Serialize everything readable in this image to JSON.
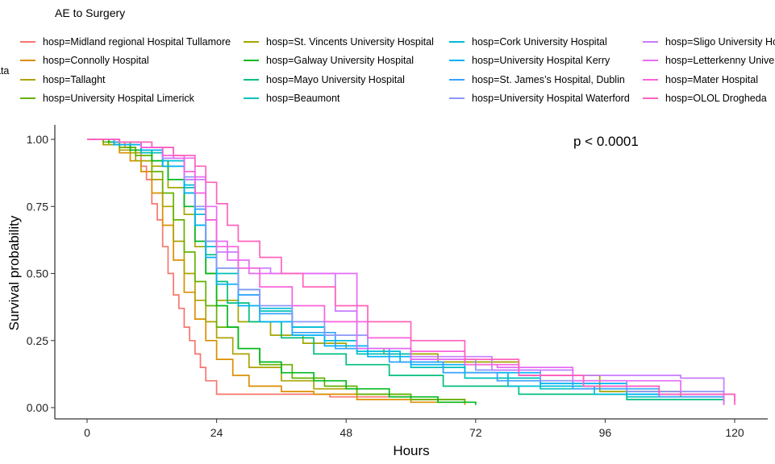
{
  "chart_data": {
    "type": "line",
    "subtype": "kaplan-meier step curves",
    "legend_title": "AE to Surgery",
    "legend_left_fragment": "ata",
    "legend_placement": "top",
    "xlabel": "Hours",
    "ylabel": "Survival probability",
    "xlim": [
      -4,
      126
    ],
    "ylim": [
      -0.05,
      1.05
    ],
    "x_ticks": [
      0,
      24,
      48,
      72,
      96,
      120
    ],
    "x_tick_labels": [
      "0",
      "24",
      "48",
      "72",
      "96",
      "120"
    ],
    "y_ticks": [
      0,
      0.25,
      0.5,
      0.75,
      1.0
    ],
    "y_tick_labels": [
      "0.00",
      "0.25",
      "0.50",
      "0.75",
      "1.00"
    ],
    "grid": false,
    "annotation": "p < 0.0001",
    "series": [
      {
        "name": "hosp=Midland regional Hospital Tullamore",
        "color": "#F8766D",
        "x": [
          0,
          5,
          7,
          9,
          10,
          11,
          12,
          13,
          14,
          15,
          16,
          17,
          18,
          19,
          20,
          21,
          22,
          24,
          30,
          45,
          60
        ],
        "y": [
          1.0,
          0.99,
          0.97,
          0.95,
          0.9,
          0.85,
          0.76,
          0.7,
          0.6,
          0.5,
          0.42,
          0.37,
          0.3,
          0.25,
          0.2,
          0.15,
          0.1,
          0.05,
          0.05,
          0.04,
          0.04
        ]
      },
      {
        "name": "hosp=Connolly Hospital",
        "color": "#DB8E00",
        "x": [
          0,
          3,
          6,
          8,
          10,
          12,
          14,
          16,
          18,
          20,
          22,
          24,
          27,
          30,
          36,
          42,
          50,
          60,
          70
        ],
        "y": [
          1.0,
          0.98,
          0.95,
          0.92,
          0.88,
          0.8,
          0.68,
          0.55,
          0.43,
          0.33,
          0.25,
          0.18,
          0.12,
          0.08,
          0.06,
          0.05,
          0.03,
          0.02,
          0.01
        ]
      },
      {
        "name": "hosp=Tallaght",
        "color": "#AEA200",
        "x": [
          0,
          3,
          6,
          9,
          12,
          14,
          16,
          18,
          20,
          22,
          24,
          27,
          30,
          36,
          42,
          50,
          60,
          70
        ],
        "y": [
          1.0,
          0.98,
          0.96,
          0.92,
          0.85,
          0.75,
          0.62,
          0.5,
          0.4,
          0.32,
          0.26,
          0.2,
          0.15,
          0.1,
          0.07,
          0.05,
          0.03,
          0.02
        ]
      },
      {
        "name": "hosp=University Hospital Limerick",
        "color": "#64B200",
        "x": [
          0,
          3,
          6,
          9,
          12,
          14,
          16,
          18,
          20,
          22,
          24,
          28,
          32,
          38,
          44,
          50,
          60,
          70
        ],
        "y": [
          1.0,
          0.99,
          0.97,
          0.94,
          0.88,
          0.8,
          0.7,
          0.58,
          0.47,
          0.38,
          0.3,
          0.22,
          0.16,
          0.11,
          0.08,
          0.05,
          0.03,
          0.02
        ]
      },
      {
        "name": "hosp=St. Vincents University Hospital",
        "color": "#A3A500",
        "x": [
          0,
          4,
          8,
          12,
          15,
          18,
          20,
          22,
          24,
          28,
          34,
          40,
          48,
          55,
          65,
          80,
          95,
          110
        ],
        "y": [
          1.0,
          0.98,
          0.95,
          0.9,
          0.82,
          0.72,
          0.6,
          0.5,
          0.4,
          0.32,
          0.27,
          0.24,
          0.22,
          0.2,
          0.17,
          0.12,
          0.06,
          0.04
        ]
      },
      {
        "name": "hosp=Galway University Hospital",
        "color": "#00B81F",
        "x": [
          0,
          4,
          8,
          12,
          15,
          18,
          20,
          22,
          24,
          26,
          28,
          32,
          36,
          42,
          48,
          56,
          65,
          72
        ],
        "y": [
          1.0,
          0.99,
          0.96,
          0.92,
          0.85,
          0.75,
          0.62,
          0.5,
          0.38,
          0.3,
          0.22,
          0.17,
          0.13,
          0.1,
          0.07,
          0.04,
          0.02,
          0.01
        ]
      },
      {
        "name": "hosp=Mayo University Hospital",
        "color": "#00BF7D",
        "x": [
          0,
          5,
          10,
          14,
          18,
          20,
          22,
          24,
          26,
          30,
          36,
          42,
          48,
          56,
          66,
          80,
          100,
          118
        ],
        "y": [
          1.0,
          0.98,
          0.95,
          0.9,
          0.8,
          0.68,
          0.57,
          0.47,
          0.39,
          0.32,
          0.26,
          0.2,
          0.16,
          0.12,
          0.08,
          0.05,
          0.03,
          0.02
        ]
      },
      {
        "name": "hosp=Beaumont",
        "color": "#00C0B8",
        "x": [
          0,
          5,
          10,
          14,
          18,
          20,
          22,
          24,
          28,
          32,
          38,
          44,
          50,
          60,
          70,
          84,
          100,
          118
        ],
        "y": [
          1.0,
          0.98,
          0.95,
          0.9,
          0.82,
          0.72,
          0.6,
          0.5,
          0.42,
          0.36,
          0.3,
          0.25,
          0.2,
          0.15,
          0.11,
          0.07,
          0.04,
          0.02
        ]
      },
      {
        "name": "hosp=Cork University Hospital",
        "color": "#00BCD8",
        "x": [
          0,
          5,
          10,
          14,
          18,
          20,
          22,
          24,
          28,
          32,
          38,
          44,
          50,
          58,
          66,
          78,
          94,
          118
        ],
        "y": [
          1.0,
          0.99,
          0.96,
          0.92,
          0.83,
          0.72,
          0.6,
          0.52,
          0.44,
          0.37,
          0.3,
          0.25,
          0.21,
          0.17,
          0.13,
          0.08,
          0.05,
          0.02
        ]
      },
      {
        "name": "hosp=University Hospital Kerry",
        "color": "#00B0F6",
        "x": [
          0,
          5,
          10,
          14,
          18,
          20,
          22,
          24,
          28,
          32,
          38,
          44,
          52,
          60,
          70,
          84,
          100,
          118
        ],
        "y": [
          1.0,
          0.98,
          0.96,
          0.9,
          0.8,
          0.68,
          0.56,
          0.46,
          0.38,
          0.32,
          0.27,
          0.23,
          0.19,
          0.16,
          0.13,
          0.09,
          0.05,
          0.02
        ]
      },
      {
        "name": "hosp=St. James’s Hospital, Dublin",
        "color": "#35A2FF",
        "x": [
          0,
          5,
          10,
          14,
          18,
          20,
          22,
          24,
          28,
          32,
          38,
          46,
          56,
          66,
          76,
          90,
          106,
          118
        ],
        "y": [
          1.0,
          0.99,
          0.97,
          0.93,
          0.85,
          0.74,
          0.62,
          0.52,
          0.42,
          0.35,
          0.28,
          0.22,
          0.17,
          0.13,
          0.1,
          0.07,
          0.04,
          0.02
        ]
      },
      {
        "name": "hosp=University Hospital Waterford",
        "color": "#8C97F7",
        "x": [
          0,
          6,
          10,
          14,
          18,
          20,
          22,
          24,
          28,
          32,
          38,
          44,
          52,
          60,
          72,
          84,
          100,
          118
        ],
        "y": [
          1.0,
          0.99,
          0.97,
          0.93,
          0.86,
          0.75,
          0.62,
          0.52,
          0.44,
          0.38,
          0.32,
          0.27,
          0.22,
          0.18,
          0.14,
          0.1,
          0.06,
          0.01
        ]
      },
      {
        "name": "hosp=Sligo University Hospital",
        "color": "#C77CFF",
        "x": [
          0,
          6,
          10,
          14,
          18,
          22,
          24,
          28,
          34,
          40,
          46,
          50,
          60,
          75,
          90,
          110,
          118
        ],
        "y": [
          1.0,
          0.99,
          0.97,
          0.93,
          0.85,
          0.7,
          0.58,
          0.52,
          0.5,
          0.5,
          0.36,
          0.22,
          0.19,
          0.14,
          0.12,
          0.11,
          0.02
        ]
      },
      {
        "name": "hosp=Letterkenny University Hospital",
        "color": "#E76BF3",
        "x": [
          0,
          6,
          12,
          16,
          20,
          22,
          24,
          26,
          30,
          36,
          42,
          46,
          50,
          60,
          70,
          76,
          90,
          110,
          118
        ],
        "y": [
          1.0,
          0.99,
          0.97,
          0.93,
          0.86,
          0.75,
          0.62,
          0.55,
          0.5,
          0.5,
          0.5,
          0.5,
          0.22,
          0.18,
          0.16,
          0.15,
          0.1,
          0.05,
          0.01
        ]
      },
      {
        "name": "hosp=Mater Hospital",
        "color": "#FA62DB",
        "x": [
          0,
          6,
          10,
          14,
          18,
          20,
          22,
          24,
          28,
          32,
          38,
          44,
          52,
          60,
          70,
          80,
          92,
          106,
          120
        ],
        "y": [
          1.0,
          0.99,
          0.97,
          0.94,
          0.88,
          0.8,
          0.7,
          0.6,
          0.52,
          0.45,
          0.38,
          0.32,
          0.26,
          0.21,
          0.16,
          0.12,
          0.08,
          0.05,
          0.02
        ]
      },
      {
        "name": "hosp=OLOL Drogheda",
        "color": "#FF62BC",
        "x": [
          0,
          6,
          12,
          16,
          20,
          22,
          24,
          26,
          28,
          32,
          36,
          40,
          46,
          52,
          60,
          70,
          80,
          92,
          106,
          120
        ],
        "y": [
          1.0,
          0.99,
          0.97,
          0.94,
          0.9,
          0.84,
          0.76,
          0.68,
          0.62,
          0.56,
          0.5,
          0.45,
          0.38,
          0.32,
          0.25,
          0.18,
          0.12,
          0.08,
          0.05,
          0.01
        ]
      }
    ]
  }
}
